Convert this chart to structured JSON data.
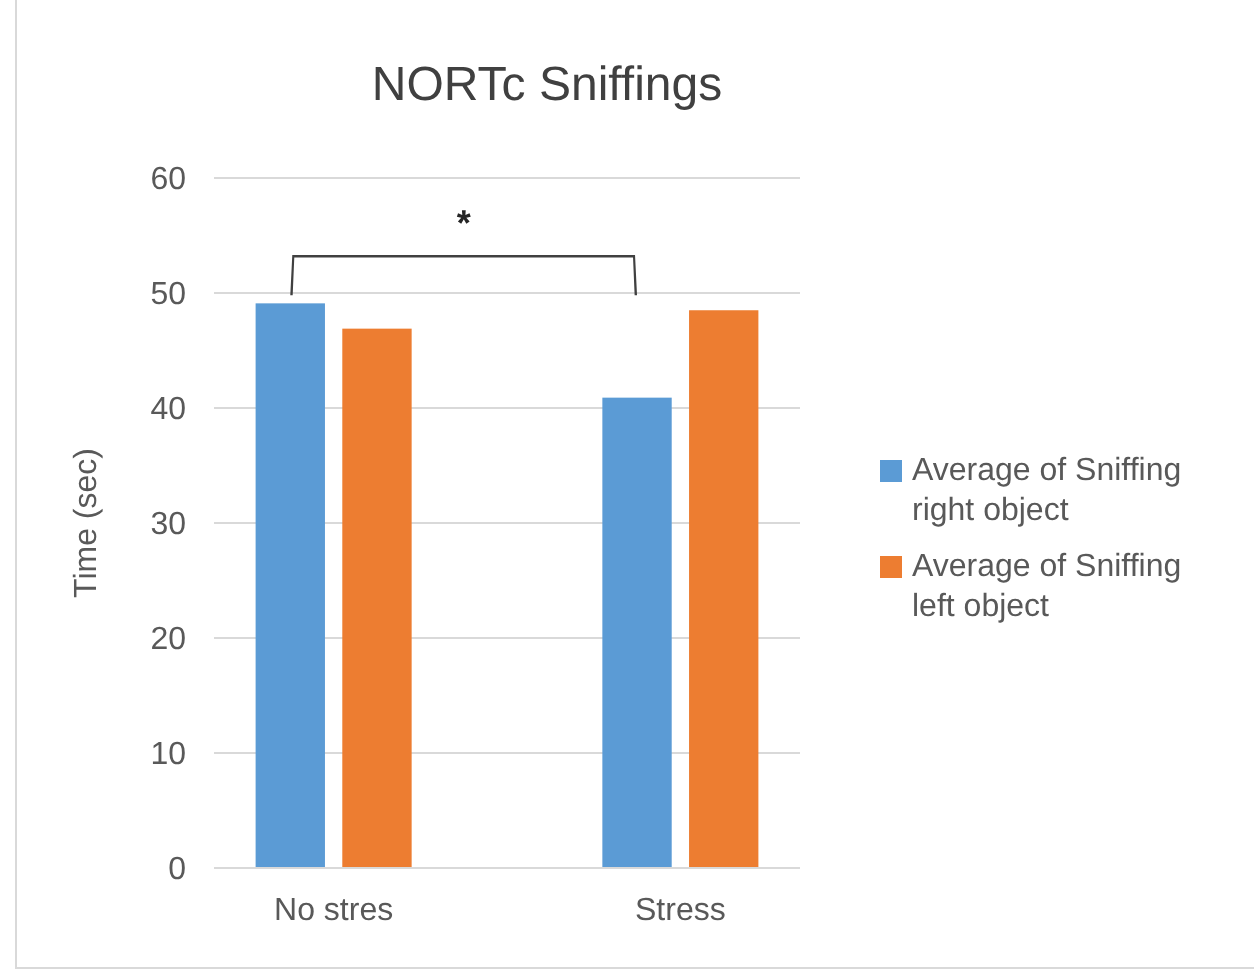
{
  "chart_data": {
    "type": "bar",
    "title": "NORTc Sniffings",
    "ylabel": "Time (sec)",
    "categories": [
      "No stres",
      "Stress"
    ],
    "series": [
      {
        "name": "Average of Sniffing right object",
        "color": "#5b9bd5",
        "values": [
          49.1,
          40.9
        ]
      },
      {
        "name": "Average of Sniffing left object",
        "color": "#ed7d31",
        "values": [
          46.9,
          48.5
        ]
      }
    ],
    "ylim": [
      0,
      60
    ],
    "yticks": [
      0,
      10,
      20,
      30,
      40,
      50,
      60
    ],
    "grid": "y",
    "legend": "right",
    "annotations": [
      "*"
    ]
  }
}
